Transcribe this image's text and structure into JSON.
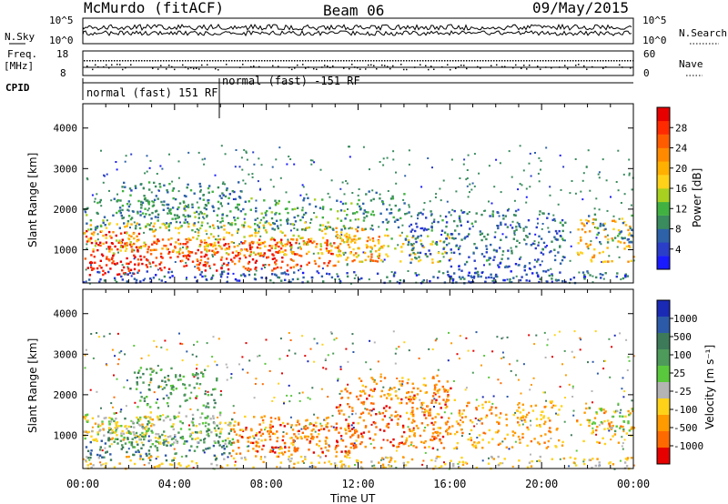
{
  "header": {
    "station": "McMurdo (fitACF)",
    "beam": "Beam 06",
    "date": "09/May/2015"
  },
  "strips": {
    "nsky_label": "N.Sky",
    "nsky_ticks": [
      "10^5",
      "10^0"
    ],
    "nsearch_label": "N.Search",
    "nsearch_ticks": [
      "10^5",
      "10^0"
    ],
    "freq_label": "Freq.",
    "freq_unit": "[MHz]",
    "freq_ticks": [
      "18",
      "8"
    ],
    "nave_label": "Nave",
    "nave_ticks": [
      "60",
      "0"
    ],
    "cpid_label": "CPID",
    "cpid_segments": [
      "normal (fast) 151 RF",
      "normal (fast) -151 RF"
    ]
  },
  "chart_data": [
    {
      "type": "heatmap",
      "panel": "power",
      "ylabel": "Slant Range [km]",
      "xlabel": "Time UT",
      "x_ticks": [
        "00:00",
        "04:00",
        "08:00",
        "12:00",
        "16:00",
        "20:00",
        "00:00"
      ],
      "y_ticks": [
        "1000",
        "2000",
        "3000",
        "4000"
      ],
      "ylim": [
        180,
        4600
      ],
      "xlim_hours": [
        0,
        24
      ],
      "colorbar": {
        "label": "Power [dB]",
        "ticks": [
          "4",
          "8",
          "12",
          "16",
          "20",
          "24",
          "28"
        ],
        "range": [
          0,
          32
        ],
        "colors": [
          "#1a1aff",
          "#2a3ec8",
          "#2d62a8",
          "#3a8b5e",
          "#41b241",
          "#a8d020",
          "#ffd21a",
          "#ffb000",
          "#ff8a00",
          "#ff5c00",
          "#ff2a00",
          "#e60000"
        ]
      },
      "bands": [
        {
          "t0": 0.0,
          "t1": 2.5,
          "r0": 400,
          "r1": 1500,
          "level": 30
        },
        {
          "t0": 0.3,
          "t1": 9.5,
          "r0": 500,
          "r1": 1200,
          "level": 29
        },
        {
          "t0": 2.0,
          "t1": 11.0,
          "r0": 550,
          "r1": 1300,
          "level": 26
        },
        {
          "t0": 0.0,
          "t1": 12.0,
          "r0": 900,
          "r1": 1700,
          "level": 18
        },
        {
          "t0": 0.0,
          "t1": 12.0,
          "r0": 1500,
          "r1": 2300,
          "level": 10
        },
        {
          "t0": 1.5,
          "t1": 7.0,
          "r0": 1800,
          "r1": 2700,
          "level": 9
        },
        {
          "t0": 11.0,
          "t1": 13.0,
          "r0": 700,
          "r1": 1600,
          "level": 23
        },
        {
          "t0": 11.0,
          "t1": 16.0,
          "r0": 700,
          "r1": 1400,
          "level": 17
        },
        {
          "t0": 12.0,
          "t1": 14.0,
          "r0": 1500,
          "r1": 2500,
          "level": 9
        },
        {
          "t0": 14.0,
          "t1": 21.0,
          "r0": 700,
          "r1": 2000,
          "level": 7
        },
        {
          "t0": 21.5,
          "t1": 24.0,
          "r0": 700,
          "r1": 1800,
          "level": 20
        },
        {
          "t0": 22.0,
          "t1": 24.0,
          "r0": 1200,
          "r1": 1900,
          "level": 9
        },
        {
          "t0": 0.0,
          "t1": 24.0,
          "r0": 200,
          "r1": 500,
          "level": 6
        },
        {
          "t0": 16.0,
          "t1": 21.0,
          "r0": 200,
          "r1": 700,
          "level": 5
        }
      ]
    },
    {
      "type": "heatmap",
      "panel": "velocity",
      "ylabel": "Slant Range [km]",
      "xlabel": "Time UT",
      "x_ticks": [
        "00:00",
        "04:00",
        "08:00",
        "12:00",
        "16:00",
        "20:00",
        "00:00"
      ],
      "y_ticks": [
        "1000",
        "2000",
        "3000",
        "4000"
      ],
      "ylim": [
        180,
        4600
      ],
      "xlim_hours": [
        0,
        24
      ],
      "colorbar": {
        "label": "Velocity [m s⁻¹]",
        "ticks": [
          "1000",
          "500",
          "100",
          "25",
          "-25",
          "-100",
          "-500",
          "-1000"
        ],
        "colors": [
          "#1a2ab4",
          "#2d5aa8",
          "#3d7a5a",
          "#4d9a5a",
          "#5ac83c",
          "#b4b4b4",
          "#ffd21a",
          "#ff9a00",
          "#ff6a00",
          "#e60000"
        ]
      },
      "bands": [
        {
          "t0": 0.0,
          "t1": 6.5,
          "r0": 400,
          "r1": 1000,
          "level": 2
        },
        {
          "t0": 1.0,
          "t1": 6.5,
          "r0": 700,
          "r1": 1500,
          "level": 3
        },
        {
          "t0": 0.0,
          "t1": 6.5,
          "r0": 800,
          "r1": 1600,
          "level": 5
        },
        {
          "t0": 0.0,
          "t1": 3.0,
          "r0": 900,
          "r1": 1500,
          "level": 6
        },
        {
          "t0": 2.0,
          "t1": 6.0,
          "r0": 1700,
          "r1": 2700,
          "level": 3
        },
        {
          "t0": 6.5,
          "t1": 12.0,
          "r0": 500,
          "r1": 1500,
          "level": 7
        },
        {
          "t0": 6.5,
          "t1": 12.0,
          "r0": 600,
          "r1": 1300,
          "level": 8
        },
        {
          "t0": 11.0,
          "t1": 16.0,
          "r0": 700,
          "r1": 2200,
          "level": 8
        },
        {
          "t0": 14.0,
          "t1": 21.0,
          "r0": 700,
          "r1": 1900,
          "level": 7
        },
        {
          "t0": 21.5,
          "t1": 24.0,
          "r0": 800,
          "r1": 1700,
          "level": 7
        },
        {
          "t0": 22.0,
          "t1": 24.0,
          "r0": 1100,
          "r1": 1700,
          "level": 4
        },
        {
          "t0": 0.0,
          "t1": 24.0,
          "r0": 200,
          "r1": 500,
          "level": 6
        },
        {
          "t0": 12.0,
          "t1": 16.0,
          "r0": 1800,
          "r1": 2500,
          "level": 7
        }
      ]
    }
  ]
}
